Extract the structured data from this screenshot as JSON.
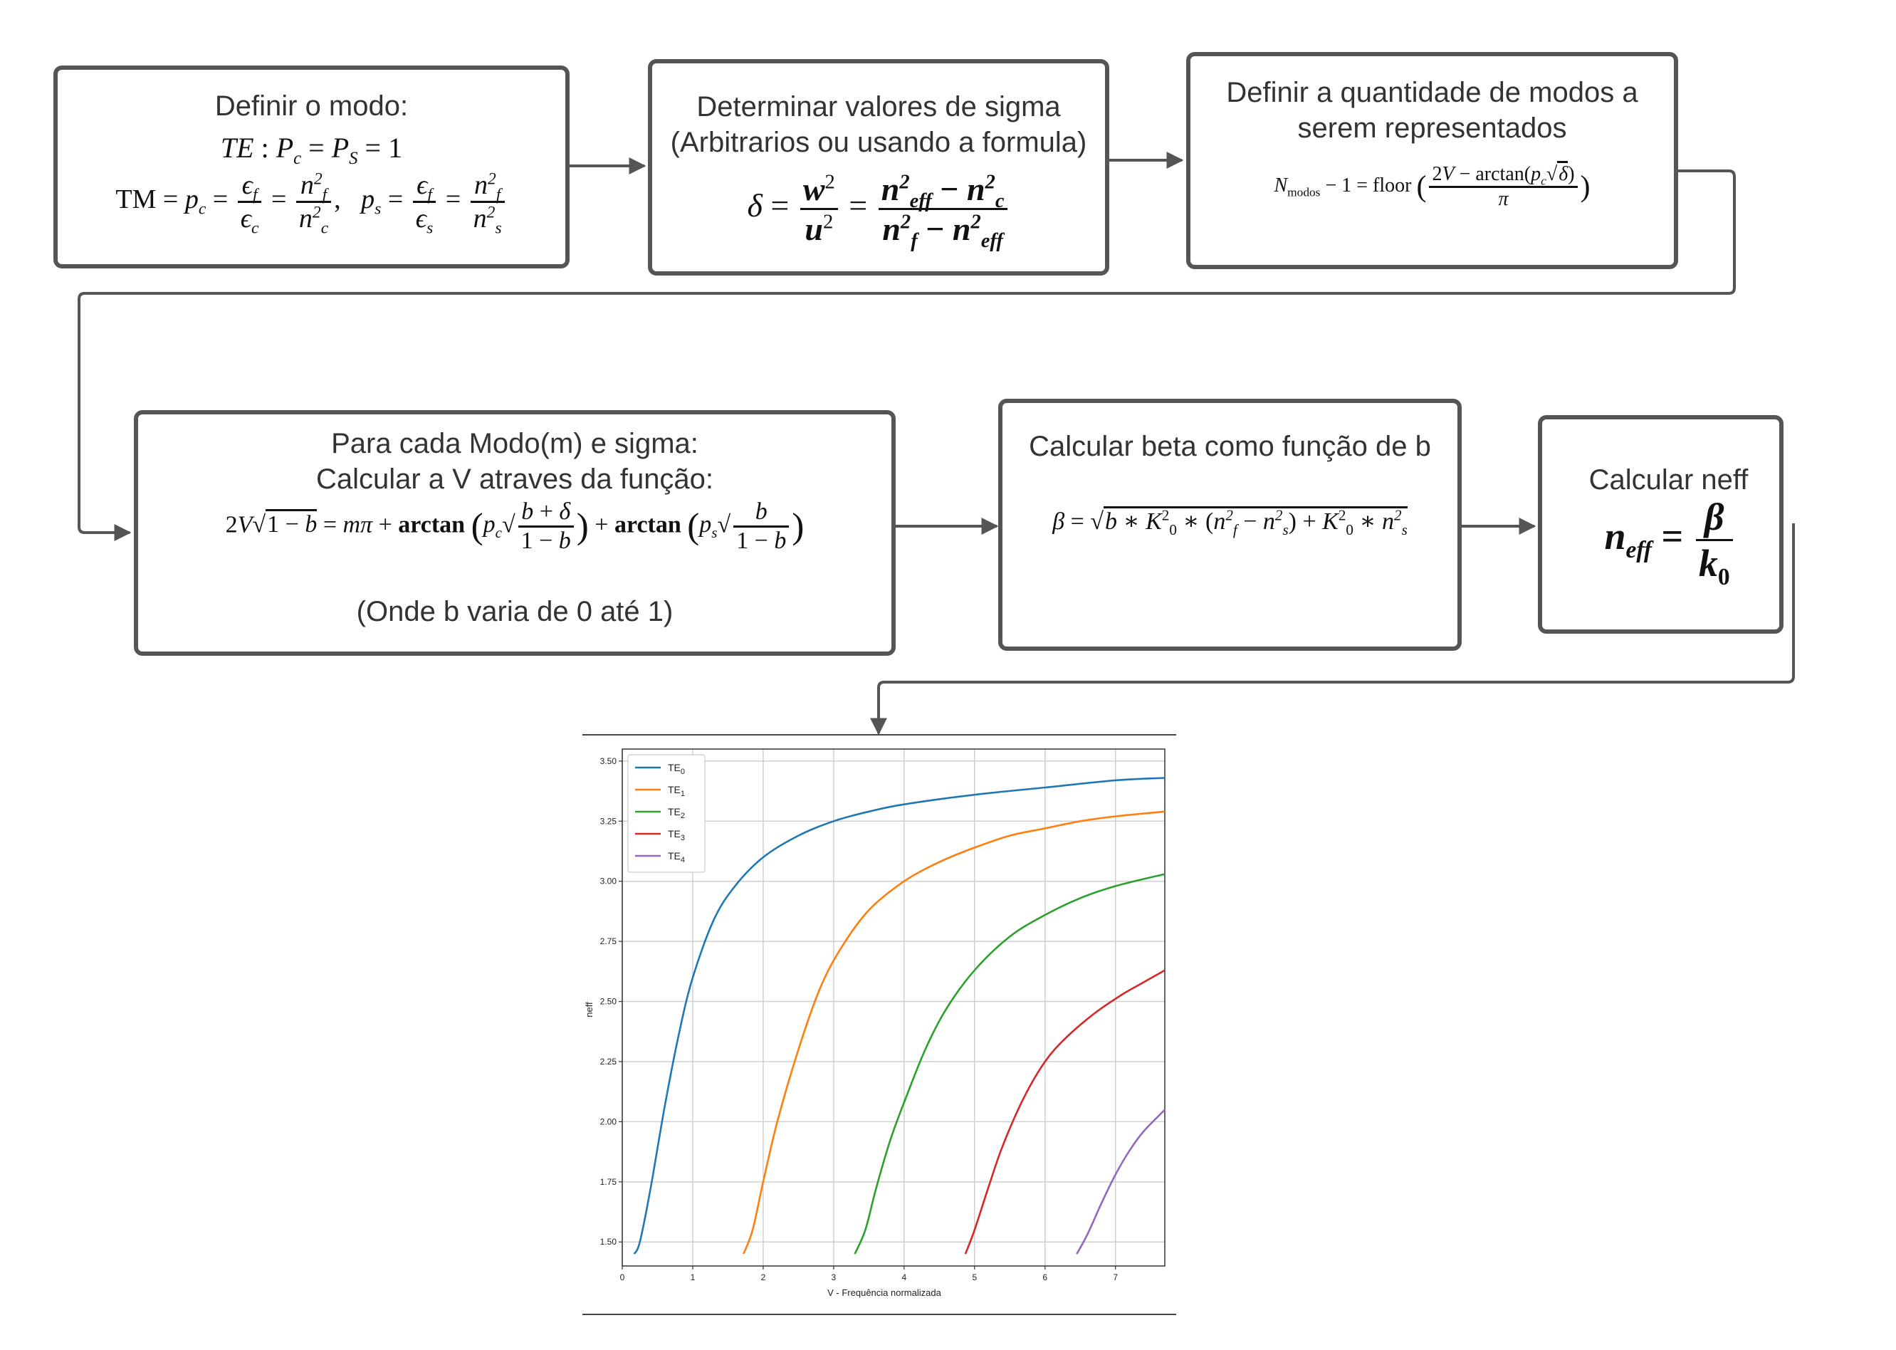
{
  "colors": {
    "box_border": "#555555",
    "arrow": "#555555",
    "text": "#333333"
  },
  "boxes": {
    "mode": {
      "title": "Definir o modo:",
      "te_eq": "TE : Pc = PS = 1",
      "tm_eq": "TM = pc = εf/εc = nf²/nc²,  ps = εf/εs = nf²/ns²"
    },
    "sigma": {
      "title": "Determinar valores de sigma",
      "subtitle": "(Arbitrarios ou usando a formula)",
      "eq": "δ = w²/u² = (neff² − nc²)/(nf² − neff²)"
    },
    "modes": {
      "title": "Definir a quantidade de modos a",
      "title2": "serem representados",
      "eq": "Nmodos − 1 = floor((2V − arctan(pc√δ))/π)"
    },
    "v_calc": {
      "title": "Para cada Modo(m) e sigma:",
      "title2": "Calcular a V atraves da função:",
      "eq": "2V√(1−b) = mπ + arctan(pc√((b+δ)/(1−b))) + arctan(ps√(b/(1−b)))",
      "note": "(Onde b varia de 0 até 1)"
    },
    "beta": {
      "title": "Calcular beta como função de b",
      "eq": "β = √(b*K0²*(nf²−ns²) + K0²*ns²)"
    },
    "neff": {
      "title": "Calcular neff",
      "eq": "neff = β/k0"
    }
  },
  "chart_data": {
    "type": "line",
    "title": "",
    "xlabel": "V - Frequência normalizada",
    "ylabel": "neff",
    "xlim": [
      0,
      7.7
    ],
    "ylim": [
      1.4,
      3.55
    ],
    "xticks": [
      0,
      1,
      2,
      3,
      4,
      5,
      6,
      7
    ],
    "yticks": [
      1.5,
      1.75,
      2.0,
      2.25,
      2.5,
      2.75,
      3.0,
      3.25,
      3.5
    ],
    "ytick_labels": [
      "1.50",
      "1.75",
      "2.00",
      "2.25",
      "2.50",
      "2.75",
      "3.00",
      "3.25",
      "3.50"
    ],
    "grid": true,
    "legend": "top-left",
    "series": [
      {
        "name": "TE0",
        "color": "#1f77b4",
        "x": [
          0.17,
          0.25,
          0.4,
          0.6,
          0.8,
          1.0,
          1.3,
          1.6,
          2.0,
          2.5,
          3.0,
          3.5,
          4.0,
          5.0,
          6.0,
          7.0,
          7.7
        ],
        "y": [
          1.45,
          1.5,
          1.72,
          2.06,
          2.36,
          2.6,
          2.84,
          2.98,
          3.1,
          3.19,
          3.25,
          3.29,
          3.32,
          3.36,
          3.39,
          3.42,
          3.43
        ]
      },
      {
        "name": "TE1",
        "color": "#ff7f0e",
        "x": [
          1.72,
          1.85,
          2.0,
          2.2,
          2.5,
          2.8,
          3.1,
          3.5,
          4.0,
          4.5,
          5.0,
          5.5,
          6.0,
          6.5,
          7.0,
          7.7
        ],
        "y": [
          1.45,
          1.55,
          1.75,
          2.0,
          2.3,
          2.55,
          2.72,
          2.88,
          3.0,
          3.08,
          3.14,
          3.19,
          3.22,
          3.25,
          3.27,
          3.29
        ]
      },
      {
        "name": "TE2",
        "color": "#2ca02c",
        "x": [
          3.3,
          3.45,
          3.6,
          3.8,
          4.0,
          4.3,
          4.6,
          5.0,
          5.5,
          6.0,
          6.5,
          7.0,
          7.7
        ],
        "y": [
          1.45,
          1.55,
          1.72,
          1.92,
          2.08,
          2.3,
          2.47,
          2.63,
          2.77,
          2.86,
          2.93,
          2.98,
          3.03
        ]
      },
      {
        "name": "TE3",
        "color": "#d62728",
        "x": [
          4.87,
          5.0,
          5.2,
          5.4,
          5.7,
          6.0,
          6.3,
          6.7,
          7.1,
          7.4,
          7.7
        ],
        "y": [
          1.45,
          1.55,
          1.73,
          1.9,
          2.1,
          2.25,
          2.35,
          2.45,
          2.53,
          2.58,
          2.63
        ]
      },
      {
        "name": "TE4",
        "color": "#9467bd",
        "x": [
          6.45,
          6.6,
          6.8,
          7.0,
          7.2,
          7.4,
          7.7
        ],
        "y": [
          1.45,
          1.53,
          1.66,
          1.78,
          1.88,
          1.96,
          2.05
        ]
      }
    ]
  }
}
